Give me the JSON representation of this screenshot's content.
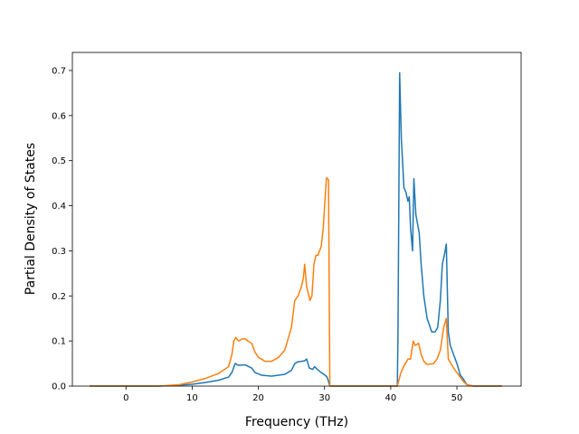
{
  "chart_data": {
    "type": "line",
    "title": "",
    "xlabel": "Frequency (THz)",
    "ylabel": "Partial Density of States",
    "xlim": [
      -8.1,
      59.7
    ],
    "ylim": [
      0,
      0.74
    ],
    "xticks": [
      0,
      10,
      20,
      30,
      40,
      50
    ],
    "yticks": [
      0.0,
      0.1,
      0.2,
      0.3,
      0.4,
      0.5,
      0.6,
      0.7
    ],
    "xtick_labels": [
      "0",
      "10",
      "20",
      "30",
      "40",
      "50"
    ],
    "ytick_labels": [
      "0.0",
      "0.1",
      "0.2",
      "0.3",
      "0.4",
      "0.5",
      "0.6",
      "0.7"
    ],
    "grid": false,
    "legend": "none",
    "series": [
      {
        "color": "#1f77b4",
        "points": [
          [
            -5.5,
            0.0
          ],
          [
            5,
            0.0
          ],
          [
            8,
            0.002
          ],
          [
            10,
            0.004
          ],
          [
            12,
            0.008
          ],
          [
            14,
            0.013
          ],
          [
            15.5,
            0.02
          ],
          [
            16,
            0.03
          ],
          [
            16.5,
            0.05
          ],
          [
            17,
            0.046
          ],
          [
            18,
            0.047
          ],
          [
            19,
            0.04
          ],
          [
            19.5,
            0.03
          ],
          [
            20.5,
            0.024
          ],
          [
            22,
            0.022
          ],
          [
            24,
            0.026
          ],
          [
            25,
            0.035
          ],
          [
            25.5,
            0.05
          ],
          [
            26,
            0.054
          ],
          [
            27,
            0.056
          ],
          [
            27.3,
            0.06
          ],
          [
            27.7,
            0.04
          ],
          [
            28.2,
            0.037
          ],
          [
            28.5,
            0.043
          ],
          [
            29,
            0.036
          ],
          [
            29.5,
            0.03
          ],
          [
            30,
            0.025
          ],
          [
            30.4,
            0.02
          ],
          [
            30.8,
            0.0
          ],
          [
            41,
            0.0
          ],
          [
            41.1,
            0.12
          ],
          [
            41.35,
            0.695
          ],
          [
            41.6,
            0.55
          ],
          [
            42,
            0.44
          ],
          [
            42.3,
            0.43
          ],
          [
            42.6,
            0.41
          ],
          [
            42.8,
            0.42
          ],
          [
            43,
            0.35
          ],
          [
            43.3,
            0.3
          ],
          [
            43.5,
            0.46
          ],
          [
            43.8,
            0.38
          ],
          [
            44.3,
            0.34
          ],
          [
            44.6,
            0.27
          ],
          [
            45,
            0.2
          ],
          [
            45.5,
            0.15
          ],
          [
            46.2,
            0.12
          ],
          [
            46.7,
            0.12
          ],
          [
            47.1,
            0.13
          ],
          [
            47.5,
            0.19
          ],
          [
            47.8,
            0.27
          ],
          [
            48.1,
            0.29
          ],
          [
            48.4,
            0.315
          ],
          [
            48.7,
            0.12
          ],
          [
            49,
            0.09
          ],
          [
            49.5,
            0.07
          ],
          [
            50,
            0.05
          ],
          [
            50.5,
            0.025
          ],
          [
            51,
            0.015
          ],
          [
            51.5,
            0.003
          ],
          [
            52.5,
            0.0
          ],
          [
            56.8,
            0.0
          ]
        ]
      },
      {
        "color": "#ff7f0e",
        "points": [
          [
            -5.5,
            0.0
          ],
          [
            5,
            0.0
          ],
          [
            8,
            0.003
          ],
          [
            10,
            0.009
          ],
          [
            12,
            0.017
          ],
          [
            14,
            0.028
          ],
          [
            15.5,
            0.043
          ],
          [
            16,
            0.07
          ],
          [
            16.3,
            0.1
          ],
          [
            16.6,
            0.108
          ],
          [
            17,
            0.1
          ],
          [
            17.5,
            0.104
          ],
          [
            18,
            0.105
          ],
          [
            18.5,
            0.099
          ],
          [
            19,
            0.095
          ],
          [
            19.5,
            0.075
          ],
          [
            20,
            0.064
          ],
          [
            21,
            0.055
          ],
          [
            22,
            0.055
          ],
          [
            23,
            0.063
          ],
          [
            24,
            0.08
          ],
          [
            25,
            0.13
          ],
          [
            25.5,
            0.19
          ],
          [
            26,
            0.2
          ],
          [
            26.5,
            0.22
          ],
          [
            26.8,
            0.24
          ],
          [
            27,
            0.27
          ],
          [
            27.3,
            0.22
          ],
          [
            27.8,
            0.19
          ],
          [
            28.1,
            0.2
          ],
          [
            28.4,
            0.27
          ],
          [
            28.7,
            0.29
          ],
          [
            29,
            0.29
          ],
          [
            29.5,
            0.31
          ],
          [
            29.8,
            0.35
          ],
          [
            30.1,
            0.42
          ],
          [
            30.3,
            0.462
          ],
          [
            30.6,
            0.458
          ],
          [
            30.8,
            0.0
          ],
          [
            41,
            0.0
          ],
          [
            41.5,
            0.028
          ],
          [
            42,
            0.045
          ],
          [
            42.6,
            0.06
          ],
          [
            43,
            0.06
          ],
          [
            43.4,
            0.1
          ],
          [
            43.7,
            0.09
          ],
          [
            44.2,
            0.095
          ],
          [
            44.6,
            0.07
          ],
          [
            45,
            0.055
          ],
          [
            45.5,
            0.048
          ],
          [
            46.5,
            0.05
          ],
          [
            47,
            0.06
          ],
          [
            47.5,
            0.08
          ],
          [
            48,
            0.13
          ],
          [
            48.4,
            0.15
          ],
          [
            48.7,
            0.06
          ],
          [
            49.5,
            0.04
          ],
          [
            50,
            0.03
          ],
          [
            50.5,
            0.02
          ],
          [
            51,
            0.01
          ],
          [
            51.5,
            0.003
          ],
          [
            52.5,
            0.0
          ],
          [
            56.8,
            0.0
          ]
        ]
      }
    ]
  }
}
